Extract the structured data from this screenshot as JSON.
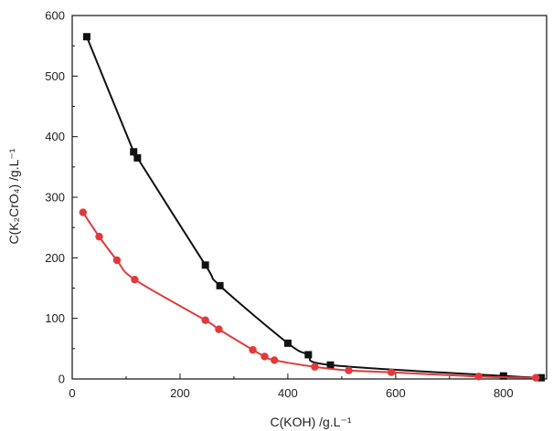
{
  "chart_data": {
    "type": "line",
    "xlabel": "C(KOH) /g.L⁻¹",
    "ylabel": "C(K₂CrO₄) /g.L⁻¹",
    "xlim": [
      0,
      880
    ],
    "ylim": [
      0,
      600
    ],
    "xticks": [
      0,
      200,
      400,
      600,
      800
    ],
    "yticks": [
      0,
      100,
      200,
      300,
      400,
      500,
      600
    ],
    "grid": false,
    "series": [
      {
        "color": "#111111",
        "marker": "square",
        "points": [
          [
            27,
            565
          ],
          [
            114,
            375
          ],
          [
            121,
            365
          ],
          [
            247,
            188
          ],
          [
            274,
            154
          ],
          [
            400,
            59
          ],
          [
            438,
            40
          ],
          [
            479,
            23
          ],
          [
            800,
            5
          ],
          [
            870,
            2
          ]
        ]
      },
      {
        "color": "#e03a3a",
        "marker": "circle",
        "points": [
          [
            20,
            275
          ],
          [
            50,
            235
          ],
          [
            83,
            196
          ],
          [
            116,
            164
          ],
          [
            247,
            97
          ],
          [
            272,
            82
          ],
          [
            335,
            48
          ],
          [
            357,
            37
          ],
          [
            375,
            31
          ],
          [
            450,
            20
          ],
          [
            513,
            14
          ],
          [
            592,
            11
          ],
          [
            754,
            4
          ],
          [
            860,
            2
          ]
        ]
      }
    ]
  }
}
